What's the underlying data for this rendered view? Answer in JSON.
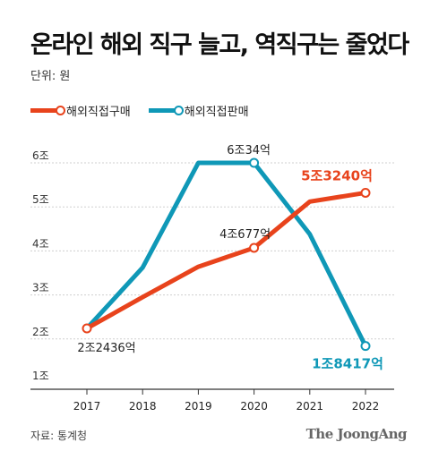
{
  "title": "온라인 해외 직구 늘고, 역직구는 줄었다",
  "unit": "단위: 원",
  "source": "자료: 통계청",
  "brand": "The JoongAng",
  "colors": {
    "import": "#e8431c",
    "export": "#0f98b7",
    "grid": "#cfcfcf",
    "axis": "#333333"
  },
  "chart_data": {
    "type": "line",
    "x": [
      "2017",
      "2018",
      "2019",
      "2020",
      "2021",
      "2022"
    ],
    "yticks": [
      {
        "value": 1,
        "label": "1조"
      },
      {
        "value": 2,
        "label": "2조"
      },
      {
        "value": 3,
        "label": "3조"
      },
      {
        "value": 4,
        "label": "4조"
      },
      {
        "value": 5,
        "label": "5조"
      },
      {
        "value": 6,
        "label": "6조"
      }
    ],
    "ylim": [
      1,
      6
    ],
    "grid": true,
    "legend_position": "top-left",
    "series": [
      {
        "name": "해외직접구매",
        "color": "#e8431c",
        "values": [
          2.24,
          2.95,
          3.64,
          4.07,
          5.12,
          5.32
        ]
      },
      {
        "name": "해외직접판매",
        "color": "#0f98b7",
        "values": [
          2.24,
          3.62,
          6.0,
          6.0,
          4.38,
          1.84
        ]
      }
    ],
    "annotations": [
      {
        "series": 0,
        "index": 0,
        "text": "2조2436억",
        "color": "#222222",
        "anchor": "below"
      },
      {
        "series": 0,
        "index": 3,
        "text": "4조677억",
        "color": "#222222",
        "anchor": "above-left"
      },
      {
        "series": 0,
        "index": 5,
        "text": "5조3240억",
        "color": "#e8431c",
        "anchor": "above-left-bold"
      },
      {
        "series": 1,
        "index": 3,
        "text": "6조34억",
        "color": "#222222",
        "anchor": "above"
      },
      {
        "series": 1,
        "index": 5,
        "text": "1조8417억",
        "color": "#0f98b7",
        "anchor": "below-left-bold"
      }
    ],
    "markers": [
      {
        "series": 0,
        "indices": [
          0,
          3,
          5
        ]
      },
      {
        "series": 1,
        "indices": [
          3,
          5
        ]
      }
    ]
  }
}
